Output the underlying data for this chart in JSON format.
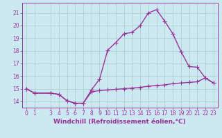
{
  "xlabel": "Windchill (Refroidissement éolien,°C)",
  "background_color": "#cce8f0",
  "grid_color": "#aacccc",
  "line_color": "#993399",
  "x_upper": [
    0,
    1,
    3,
    4,
    5,
    6,
    7,
    8,
    9,
    10,
    11,
    12,
    13,
    14,
    15,
    16,
    17,
    18,
    19,
    20,
    21,
    22,
    23
  ],
  "y_upper": [
    15.0,
    14.65,
    14.65,
    14.55,
    14.05,
    13.85,
    13.85,
    14.9,
    15.75,
    18.05,
    18.65,
    19.35,
    19.45,
    20.0,
    21.0,
    21.25,
    20.35,
    19.35,
    17.95,
    16.75,
    16.7,
    15.85,
    15.45
  ],
  "x_lower": [
    0,
    1,
    3,
    4,
    5,
    6,
    7,
    8,
    9,
    10,
    11,
    12,
    13,
    14,
    15,
    16,
    17,
    18,
    19,
    20,
    21,
    22,
    23
  ],
  "y_lower": [
    15.0,
    14.65,
    14.65,
    14.55,
    14.05,
    13.85,
    13.85,
    14.75,
    14.85,
    14.9,
    14.95,
    15.0,
    15.05,
    15.1,
    15.2,
    15.25,
    15.3,
    15.4,
    15.45,
    15.5,
    15.55,
    15.85,
    15.45
  ],
  "ylim": [
    13.5,
    21.8
  ],
  "xlim": [
    -0.5,
    23.5
  ],
  "yticks": [
    14,
    15,
    16,
    17,
    18,
    19,
    20,
    21
  ],
  "xticks": [
    0,
    1,
    3,
    4,
    5,
    6,
    7,
    8,
    9,
    10,
    11,
    12,
    13,
    14,
    15,
    16,
    17,
    18,
    19,
    20,
    21,
    22,
    23
  ],
  "marker": "+",
  "markersize": 4,
  "linewidth": 1.0,
  "markeredgewidth": 0.8,
  "font_color": "#993399",
  "tick_fontsize": 5.5,
  "label_fontsize": 6.5
}
